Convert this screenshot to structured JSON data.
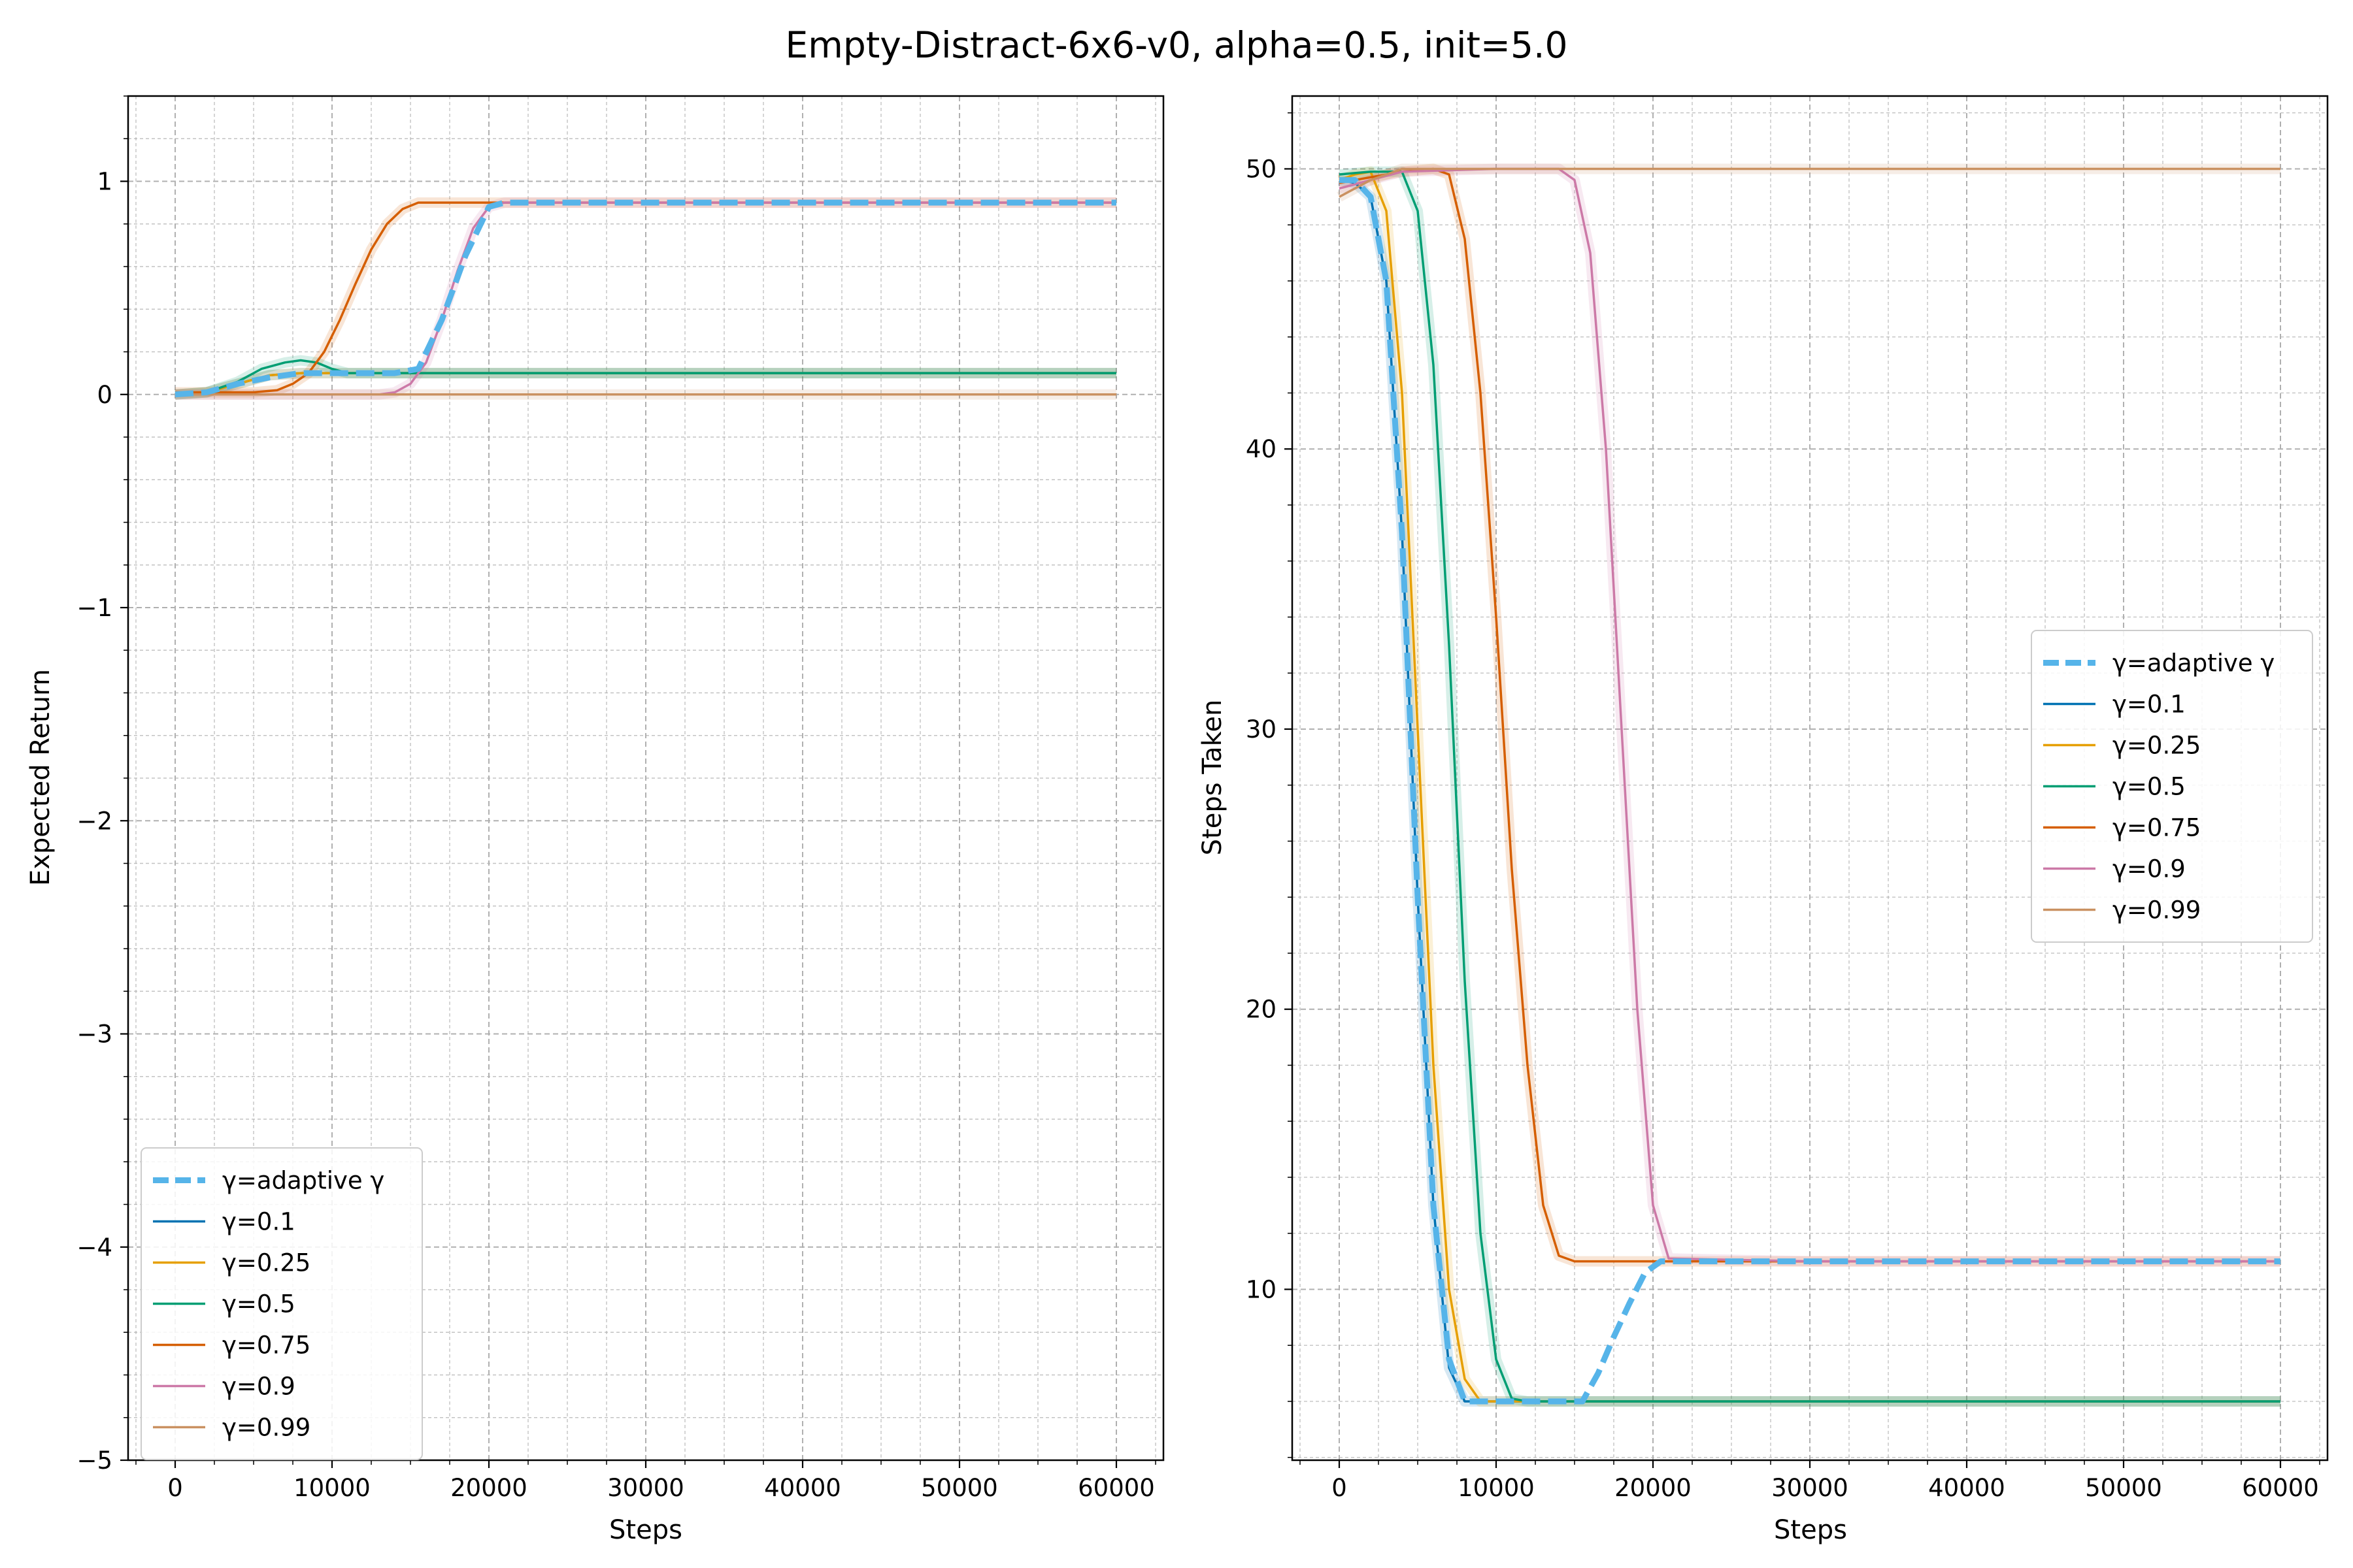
{
  "figure": {
    "title": "Empty-Distract-6x6-v0, alpha=0.5, init=5.0"
  },
  "colors": {
    "adaptive": "#56b4e9",
    "g0.1": "#0072b2",
    "g0.25": "#e69f00",
    "g0.5": "#009e73",
    "g0.75": "#d55e00",
    "g0.9": "#cc79a7",
    "g0.99": "#ca9161",
    "grid": "#b0b0b0"
  },
  "chart_data": [
    {
      "type": "line",
      "xlabel": "Steps",
      "ylabel": "Expected Return",
      "xlim": [
        -3000,
        63000
      ],
      "ylim": [
        -5,
        1.4
      ],
      "xticks": [
        0,
        10000,
        20000,
        30000,
        40000,
        50000,
        60000
      ],
      "xtick_labels": [
        "0",
        "10000",
        "20000",
        "30000",
        "40000",
        "50000",
        "60000"
      ],
      "yticks": [
        -5,
        -4,
        -3,
        -2,
        -1,
        0,
        1
      ],
      "ytick_labels": [
        "−5",
        "−4",
        "−3",
        "−2",
        "−1",
        "0",
        "1"
      ],
      "grid": true,
      "legend_position": "lower-left",
      "series": [
        {
          "name": "γ=adaptive γ",
          "color_key": "adaptive",
          "style": "dashed",
          "x": [
            0,
            2000,
            4000,
            6000,
            8000,
            10000,
            12000,
            14000,
            15500,
            17000,
            18500,
            20000,
            21000,
            30000,
            45000,
            60000
          ],
          "y": [
            0,
            0.01,
            0.05,
            0.08,
            0.1,
            0.1,
            0.1,
            0.1,
            0.12,
            0.35,
            0.65,
            0.88,
            0.9,
            0.9,
            0.9,
            0.9
          ]
        },
        {
          "name": "γ=0.1",
          "color_key": "g0.1",
          "style": "solid",
          "x": [
            0,
            2000,
            4000,
            6000,
            8000,
            10000,
            15000,
            30000,
            60000
          ],
          "y": [
            0,
            0.01,
            0.05,
            0.09,
            0.1,
            0.1,
            0.1,
            0.1,
            0.1
          ]
        },
        {
          "name": "γ=0.25",
          "color_key": "g0.25",
          "style": "solid",
          "x": [
            0,
            2000,
            4000,
            6000,
            8000,
            10000,
            15000,
            30000,
            60000
          ],
          "y": [
            0,
            0.01,
            0.05,
            0.09,
            0.1,
            0.1,
            0.1,
            0.1,
            0.1
          ]
        },
        {
          "name": "γ=0.5",
          "color_key": "g0.5",
          "style": "solid",
          "x": [
            0,
            2000,
            4000,
            5500,
            7000,
            8000,
            9000,
            10000,
            11000,
            13000,
            20000,
            40000,
            60000
          ],
          "y": [
            0,
            0.01,
            0.06,
            0.12,
            0.15,
            0.16,
            0.15,
            0.12,
            0.1,
            0.1,
            0.1,
            0.1,
            0.1
          ]
        },
        {
          "name": "γ=0.75",
          "color_key": "g0.75",
          "style": "solid",
          "x": [
            0,
            5000,
            6500,
            7500,
            8500,
            9500,
            10500,
            11500,
            12500,
            13500,
            14500,
            15500,
            17000,
            30000,
            60000
          ],
          "y": [
            0.01,
            0.01,
            0.02,
            0.05,
            0.1,
            0.2,
            0.35,
            0.52,
            0.68,
            0.8,
            0.87,
            0.9,
            0.9,
            0.9,
            0.9
          ]
        },
        {
          "name": "γ=0.9",
          "color_key": "g0.9",
          "style": "solid",
          "x": [
            0,
            13000,
            14000,
            15000,
            16000,
            17000,
            18000,
            19000,
            20000,
            21000,
            30000,
            60000
          ],
          "y": [
            0,
            0,
            0.01,
            0.05,
            0.15,
            0.35,
            0.58,
            0.78,
            0.88,
            0.9,
            0.9,
            0.9
          ]
        },
        {
          "name": "γ=0.99",
          "color_key": "g0.99",
          "style": "solid",
          "x": [
            0,
            60000
          ],
          "y": [
            0,
            0
          ]
        }
      ]
    },
    {
      "type": "line",
      "xlabel": "Steps",
      "ylabel": "Steps Taken",
      "xlim": [
        -3000,
        63000
      ],
      "ylim": [
        3.9,
        52.6
      ],
      "xticks": [
        0,
        10000,
        20000,
        30000,
        40000,
        50000,
        60000
      ],
      "xtick_labels": [
        "0",
        "10000",
        "20000",
        "30000",
        "40000",
        "50000",
        "60000"
      ],
      "yticks": [
        10,
        20,
        30,
        40,
        50
      ],
      "ytick_labels": [
        "10",
        "20",
        "30",
        "40",
        "50"
      ],
      "grid": true,
      "legend_position": "center-right",
      "series": [
        {
          "name": "γ=adaptive γ",
          "color_key": "adaptive",
          "style": "dashed",
          "x": [
            0,
            1000,
            2000,
            3000,
            4000,
            5000,
            6000,
            7000,
            8000,
            9000,
            12000,
            15500,
            16500,
            17500,
            18500,
            19500,
            20500,
            30000,
            45000,
            60000
          ],
          "y": [
            49.6,
            49.6,
            49.0,
            46.0,
            37.0,
            24.0,
            13.0,
            7.5,
            6.0,
            6.0,
            6.0,
            6.0,
            7.0,
            8.3,
            9.5,
            10.6,
            11.0,
            11.0,
            11.0,
            11.0
          ]
        },
        {
          "name": "γ=0.1",
          "color_key": "g0.1",
          "style": "solid",
          "x": [
            0,
            1000,
            2000,
            3000,
            4000,
            5000,
            6000,
            7000,
            8000,
            9000,
            15000,
            30000,
            60000
          ],
          "y": [
            49.6,
            49.5,
            49.0,
            46.0,
            37.0,
            24.0,
            13.0,
            7.2,
            6.0,
            6.0,
            6.0,
            6.0,
            6.0
          ]
        },
        {
          "name": "γ=0.25",
          "color_key": "g0.25",
          "style": "solid",
          "x": [
            0,
            1000,
            2000,
            3000,
            4000,
            5000,
            6000,
            7000,
            8000,
            9000,
            15000,
            30000,
            60000
          ],
          "y": [
            49.6,
            49.8,
            49.9,
            48.5,
            42.0,
            30.0,
            18.0,
            10.0,
            6.8,
            6.0,
            6.0,
            6.0,
            6.0
          ]
        },
        {
          "name": "γ=0.5",
          "color_key": "g0.5",
          "style": "solid",
          "x": [
            0,
            2000,
            4000,
            5000,
            6000,
            7000,
            8000,
            9000,
            10000,
            11000,
            12000,
            30000,
            60000
          ],
          "y": [
            49.8,
            49.9,
            49.9,
            48.5,
            43.0,
            33.0,
            21.0,
            12.0,
            7.5,
            6.1,
            6.0,
            6.0,
            6.0
          ]
        },
        {
          "name": "γ=0.75",
          "color_key": "g0.75",
          "style": "solid",
          "x": [
            0,
            2000,
            4000,
            6000,
            7000,
            8000,
            9000,
            10000,
            11000,
            12000,
            13000,
            14000,
            15000,
            30000,
            60000
          ],
          "y": [
            49.5,
            49.7,
            49.9,
            50.0,
            49.8,
            47.5,
            42.0,
            34.0,
            25.0,
            18.0,
            13.0,
            11.2,
            11.0,
            11.0,
            11.0
          ]
        },
        {
          "name": "γ=0.9",
          "color_key": "g0.9",
          "style": "solid",
          "x": [
            0,
            2000,
            4000,
            10000,
            14000,
            15000,
            16000,
            17000,
            18000,
            19000,
            20000,
            21000,
            30000,
            60000
          ],
          "y": [
            49.3,
            49.6,
            49.9,
            50.0,
            50.0,
            49.6,
            47.0,
            40.0,
            30.0,
            20.0,
            13.0,
            11.1,
            11.0,
            11.0
          ]
        },
        {
          "name": "γ=0.99",
          "color_key": "g0.99",
          "style": "solid",
          "x": [
            0,
            2000,
            4000,
            60000
          ],
          "y": [
            49.0,
            49.6,
            50.0,
            50.0
          ]
        }
      ]
    }
  ]
}
